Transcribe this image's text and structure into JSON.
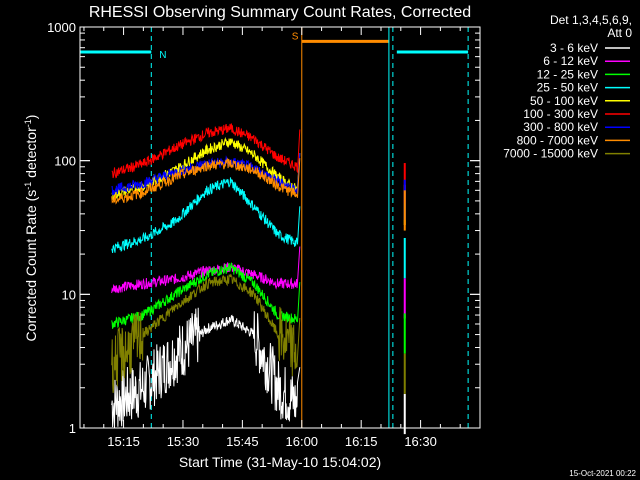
{
  "chart_data": {
    "type": "line",
    "title": "RHESSI Observing Summary Count Rates, Corrected",
    "xlabel": "Start Time (31-May-10 15:04:02)",
    "ylabel": "Corrected Count Rate (s",
    "ylabel_sup1": "-1",
    "ylabel_mid": " detector",
    "ylabel_sup2": "-1",
    "ylabel_end": ")",
    "y_scale": "log",
    "ylim": [
      1,
      1000
    ],
    "xlim": [
      "15:04",
      "16:45"
    ],
    "x_ticks": [
      "15:15",
      "15:30",
      "15:45",
      "16:00",
      "16:15",
      "16:30"
    ],
    "y_ticks": [
      "1",
      "10",
      "100",
      "1000"
    ],
    "grid": false,
    "legend_position": "right",
    "legend_header": [
      "Det 1,3,4,5,6,9,",
      "Att 0"
    ],
    "series": [
      {
        "name": "3 - 6 keV",
        "color": "#ffffff",
        "x": [
          "15:12",
          "15:20",
          "15:28",
          "15:36",
          "15:42",
          "15:48",
          "15:54",
          "15:59"
        ],
        "y": [
          1.5,
          2.0,
          3.5,
          5.5,
          6.5,
          5.0,
          2.0,
          1.5
        ]
      },
      {
        "name": "6 - 12 keV",
        "color": "#ff00ff",
        "x": [
          "15:12",
          "15:20",
          "15:28",
          "15:36",
          "15:42",
          "15:48",
          "15:54",
          "15:59"
        ],
        "y": [
          11,
          12,
          13,
          15,
          16,
          14,
          12,
          12
        ]
      },
      {
        "name": "12 - 25 keV",
        "color": "#00ff00",
        "x": [
          "15:12",
          "15:20",
          "15:28",
          "15:36",
          "15:42",
          "15:48",
          "15:54",
          "15:59"
        ],
        "y": [
          6,
          7,
          10,
          14,
          16,
          12,
          7,
          6.5
        ]
      },
      {
        "name": "25 - 50 keV",
        "color": "#00ffff",
        "x": [
          "15:12",
          "15:20",
          "15:28",
          "15:36",
          "15:42",
          "15:48",
          "15:54",
          "15:59"
        ],
        "y": [
          22,
          26,
          35,
          60,
          70,
          45,
          28,
          24
        ]
      },
      {
        "name": "50 - 100 keV",
        "color": "#ffff00",
        "x": [
          "15:12",
          "15:20",
          "15:28",
          "15:36",
          "15:42",
          "15:48",
          "15:54",
          "15:59"
        ],
        "y": [
          55,
          65,
          85,
          120,
          140,
          110,
          75,
          60
        ]
      },
      {
        "name": "100 - 300 keV",
        "color": "#ff0000",
        "x": [
          "15:12",
          "15:20",
          "15:28",
          "15:36",
          "15:42",
          "15:48",
          "15:54",
          "15:59"
        ],
        "y": [
          80,
          95,
          125,
          160,
          175,
          145,
          105,
          90
        ]
      },
      {
        "name": "300 - 800 keV",
        "color": "#0000ff",
        "x": [
          "15:12",
          "15:20",
          "15:28",
          "15:36",
          "15:42",
          "15:48",
          "15:54",
          "15:59"
        ],
        "y": [
          60,
          68,
          82,
          95,
          98,
          88,
          70,
          60
        ]
      },
      {
        "name": "800 - 7000 keV",
        "color": "#ff8c00",
        "x": [
          "15:12",
          "15:20",
          "15:28",
          "15:36",
          "15:42",
          "15:48",
          "15:54",
          "15:59"
        ],
        "y": [
          50,
          58,
          75,
          92,
          95,
          85,
          65,
          55
        ]
      },
      {
        "name": "7000 - 15000 keV",
        "color": "#808000",
        "x": [
          "15:12",
          "15:20",
          "15:28",
          "15:36",
          "15:42",
          "15:48",
          "15:54",
          "15:59"
        ],
        "y": [
          3,
          5,
          8,
          12,
          13,
          10,
          5,
          3.5
        ]
      }
    ],
    "flags": [
      {
        "label": "N",
        "color": "#00ffff",
        "segments": [
          [
            "15:04",
            "15:22"
          ],
          [
            "16:24",
            "16:42"
          ]
        ],
        "level": 650
      },
      {
        "label": "S",
        "color": "#ff8c00",
        "segments": [
          [
            "16:00",
            "16:22"
          ]
        ],
        "level": 780
      }
    ],
    "markers": [
      {
        "time": "15:22",
        "color": "#00ffff",
        "style": "dashed"
      },
      {
        "time": "16:00",
        "color": "#ff8c00",
        "style": "solid"
      },
      {
        "time": "16:22",
        "color": "#00ffff",
        "style": "solid"
      },
      {
        "time": "16:23",
        "color": "#00ffff",
        "style": "dashed"
      },
      {
        "time": "16:42",
        "color": "#00ffff",
        "style": "dashed"
      }
    ],
    "footer_timestamp": "15-Oct-2021 00:22"
  }
}
